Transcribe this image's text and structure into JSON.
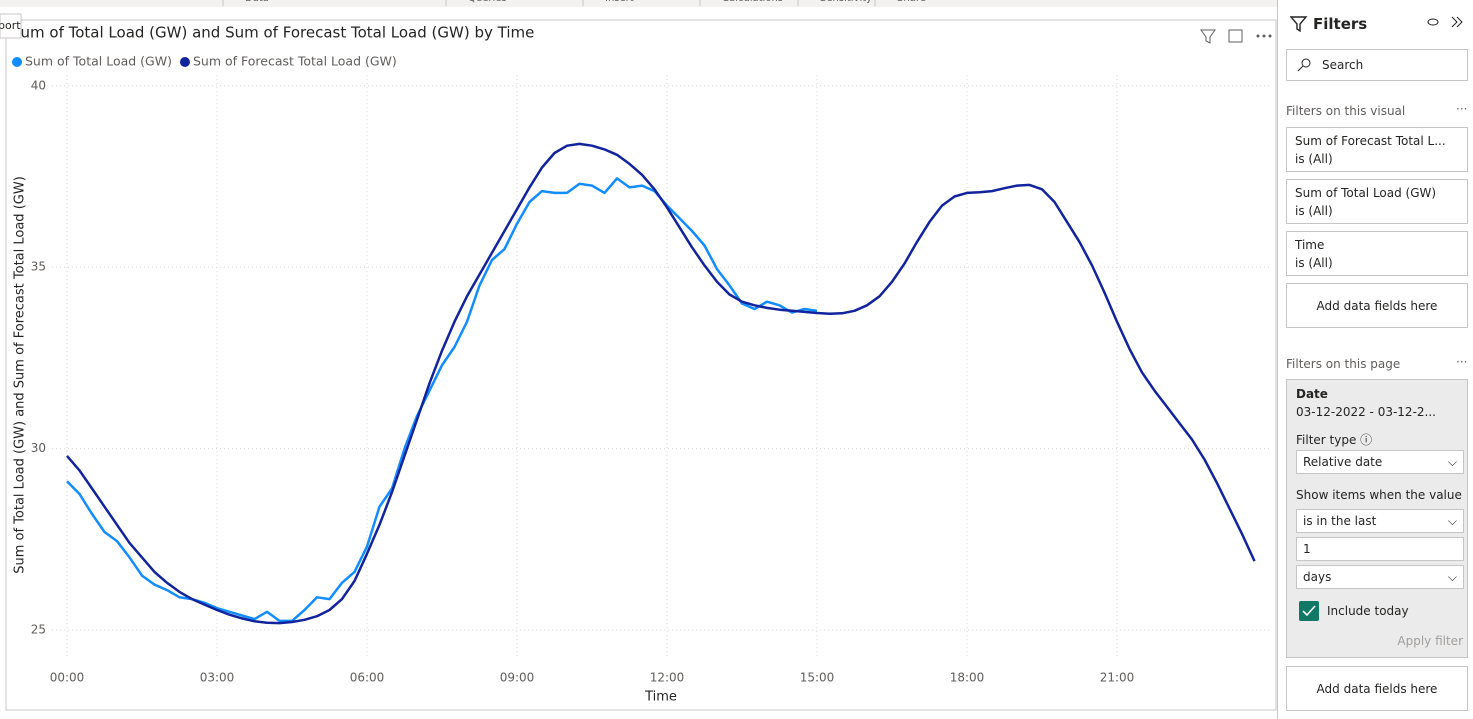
{
  "ribbon": {
    "items": [
      "Data",
      "Queries",
      "Insert",
      "Calculations",
      "Sensitivity",
      "Share"
    ],
    "tooltip": "port"
  },
  "chart_data": {
    "type": "line",
    "title": "Sum of Total Load (GW) and Sum of Forecast Total Load (GW) by Time",
    "x_label": "Time",
    "y_label": "Sum of Total Load (GW) and Sum of Forecast Total Load (GW)",
    "x": [
      0,
      0.25,
      0.5,
      0.75,
      1,
      1.25,
      1.5,
      1.75,
      2,
      2.25,
      2.5,
      2.75,
      3,
      3.25,
      3.5,
      3.75,
      4,
      4.25,
      4.5,
      4.75,
      5,
      5.25,
      5.5,
      5.75,
      6,
      6.25,
      6.5,
      6.75,
      7,
      7.25,
      7.5,
      7.75,
      8,
      8.25,
      8.5,
      8.75,
      9,
      9.25,
      9.5,
      9.75,
      10,
      10.25,
      10.5,
      10.75,
      11,
      11.25,
      11.5,
      11.75,
      12,
      12.25,
      12.5,
      12.75,
      13,
      13.25,
      13.5,
      13.75,
      14,
      14.25,
      14.5,
      14.75,
      15,
      15.25,
      15.5,
      15.75,
      16,
      16.25,
      16.5,
      16.75,
      17,
      17.25,
      17.5,
      17.75,
      18,
      18.25,
      18.5,
      18.75,
      19,
      19.25,
      19.5,
      19.75,
      20,
      20.25,
      20.5,
      20.75,
      21,
      21.25,
      21.5,
      21.75,
      22,
      22.25,
      22.5,
      22.75,
      23,
      23.25,
      23.5,
      23.75
    ],
    "series": [
      {
        "name": "Sum of Total Load (GW)",
        "color": "#118dff",
        "values": [
          29.1,
          28.75,
          28.2,
          27.7,
          27.45,
          27.0,
          26.5,
          26.25,
          26.1,
          25.9,
          25.85,
          25.75,
          25.6,
          25.5,
          25.4,
          25.3,
          25.5,
          25.25,
          25.25,
          25.55,
          25.9,
          25.85,
          26.3,
          26.6,
          27.3,
          28.4,
          28.9,
          30.0,
          30.9,
          31.6,
          32.3,
          32.8,
          33.5,
          34.5,
          35.2,
          35.5,
          36.2,
          36.8,
          37.1,
          37.05,
          37.05,
          37.3,
          37.25,
          37.05,
          37.45,
          37.2,
          37.25,
          37.1,
          36.7,
          36.35,
          36.0,
          35.6,
          34.95,
          34.5,
          34.0,
          33.85,
          34.05,
          33.95,
          33.75,
          33.85,
          33.8,
          null,
          null,
          null,
          null,
          null,
          null,
          null,
          null,
          null,
          null,
          null,
          null,
          null,
          null,
          null,
          null,
          null,
          null,
          null,
          null,
          null,
          null,
          null,
          null,
          null,
          null,
          null,
          null,
          null,
          null,
          null,
          null,
          null,
          null,
          null
        ]
      },
      {
        "name": "Sum of Forecast Total Load (GW)",
        "color": "#12239e",
        "values": [
          29.8,
          29.4,
          28.9,
          28.4,
          27.9,
          27.4,
          27.0,
          26.6,
          26.3,
          26.05,
          25.85,
          25.7,
          25.55,
          25.42,
          25.32,
          25.24,
          25.2,
          25.19,
          25.22,
          25.28,
          25.38,
          25.55,
          25.85,
          26.35,
          27.1,
          27.9,
          28.8,
          29.8,
          30.8,
          31.8,
          32.7,
          33.5,
          34.2,
          34.8,
          35.4,
          36.0,
          36.6,
          37.2,
          37.75,
          38.15,
          38.35,
          38.4,
          38.35,
          38.25,
          38.1,
          37.85,
          37.55,
          37.15,
          36.65,
          36.1,
          35.55,
          35.05,
          34.6,
          34.25,
          34.05,
          33.95,
          33.88,
          33.83,
          33.8,
          33.77,
          33.74,
          33.72,
          33.73,
          33.8,
          33.95,
          34.2,
          34.6,
          35.1,
          35.7,
          36.25,
          36.7,
          36.95,
          37.05,
          37.07,
          37.1,
          37.18,
          37.25,
          37.27,
          37.15,
          36.8,
          36.25,
          35.7,
          35.05,
          34.3,
          33.5,
          32.75,
          32.1,
          31.6,
          31.15,
          30.7,
          30.25,
          29.7,
          29.05,
          28.35,
          27.65,
          26.9
        ]
      }
    ],
    "xlim": [
      -0.3,
      24.1
    ],
    "xticks": [
      {
        "value": 0,
        "label": "00:00"
      },
      {
        "value": 3,
        "label": "03:00"
      },
      {
        "value": 6,
        "label": "06:00"
      },
      {
        "value": 9,
        "label": "09:00"
      },
      {
        "value": 12,
        "label": "12:00"
      },
      {
        "value": 15,
        "label": "15:00"
      },
      {
        "value": 18,
        "label": "18:00"
      },
      {
        "value": 21,
        "label": "21:00"
      }
    ],
    "ylim": [
      24.2,
      40.3
    ],
    "yticks": [
      25,
      30,
      35,
      40
    ],
    "grid": true,
    "legend": "top-left"
  },
  "filters": {
    "title": "Filters",
    "search": "Search",
    "visual": {
      "heading": "Filters on this visual",
      "cards": [
        {
          "field": "Sum of Forecast Total L...",
          "state": "is (All)"
        },
        {
          "field": "Sum of Total Load (GW)",
          "state": "is (All)"
        },
        {
          "field": "Time",
          "state": "is (All)"
        }
      ],
      "add": "Add data fields here"
    },
    "page": {
      "heading": "Filters on this page",
      "date": {
        "field": "Date",
        "range": "03-12-2022 - 03-12-2...",
        "filter_type_label": "Filter type",
        "filter_type": "Relative date",
        "show_label": "Show items when the value",
        "operator": "is in the last",
        "amount": "1",
        "unit": "days",
        "include_today": "Include today",
        "apply": "Apply filter"
      },
      "add": "Add data fields here"
    }
  }
}
